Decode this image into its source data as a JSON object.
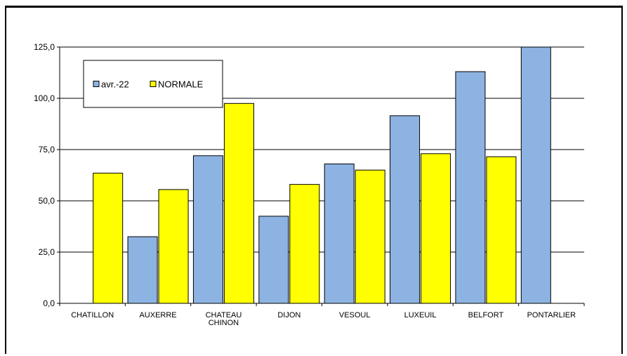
{
  "chart_data": {
    "type": "bar",
    "title": "",
    "xlabel": "",
    "ylabel": "",
    "categories": [
      [
        "CHATILLON"
      ],
      [
        "AUXERRE"
      ],
      [
        "CHATEAU",
        "CHINON"
      ],
      [
        "DIJON"
      ],
      [
        "VESOUL"
      ],
      [
        "LUXEUIL"
      ],
      [
        "BELFORT"
      ],
      [
        "PONTARLIER"
      ]
    ],
    "series": [
      {
        "name": "avr.-22",
        "color": "#8DB3E2",
        "values": [
          0,
          32.5,
          72,
          42.5,
          68,
          91.5,
          113,
          125
        ]
      },
      {
        "name": "NORMALE",
        "color": "#FFFF00",
        "values": [
          63.5,
          55.5,
          97.5,
          58,
          65,
          73,
          71.5,
          null
        ]
      }
    ],
    "ylim": [
      0,
      125
    ],
    "yticks": [
      "0,0",
      "25,0",
      "50,0",
      "75,0",
      "100,0",
      "125,0"
    ],
    "grid": true,
    "legend_position": "top-left"
  }
}
